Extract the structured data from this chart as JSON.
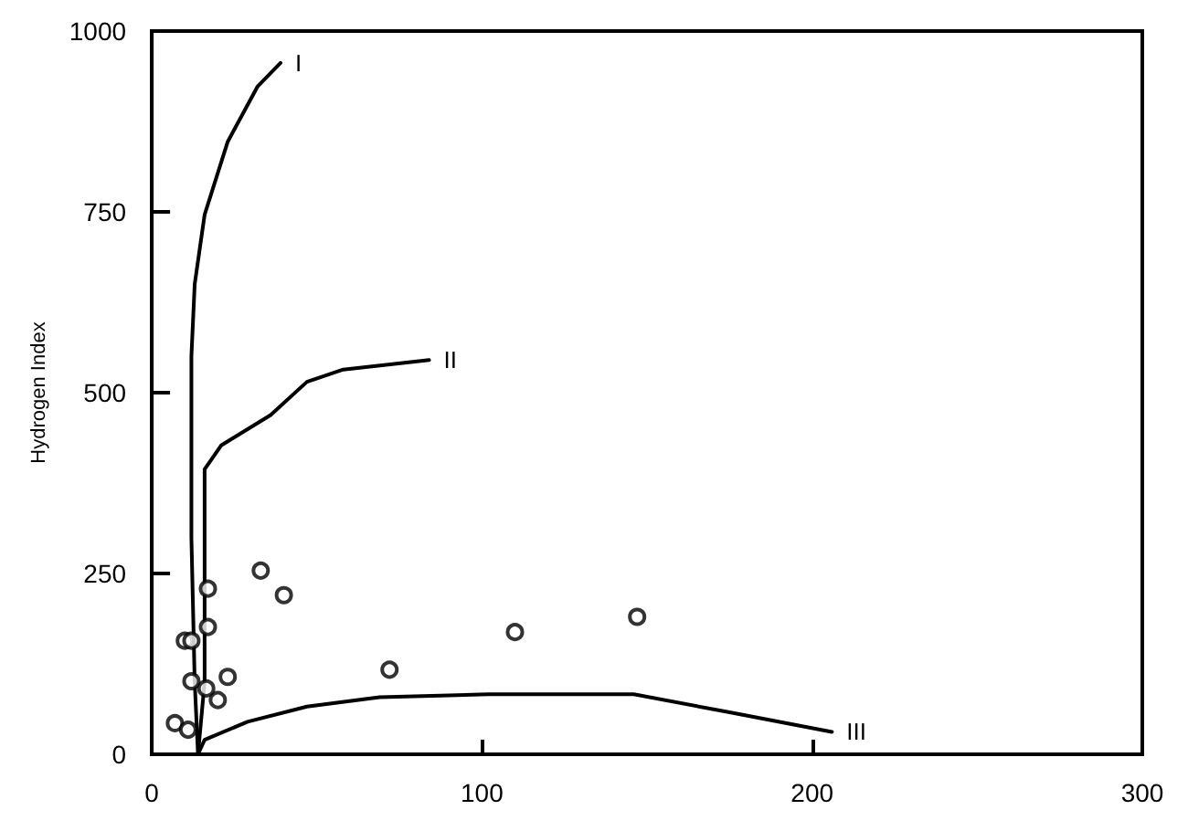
{
  "chart_data": {
    "type": "scatter",
    "ylabel": "Hydrogen Index",
    "xlim": [
      0,
      300
    ],
    "ylim": [
      0,
      1000
    ],
    "xticks": [
      0,
      100,
      200,
      300
    ],
    "yticks": [
      0,
      250,
      500,
      750,
      1000
    ],
    "legend": false,
    "series": [
      {
        "type": "line",
        "name": "I",
        "color": "#000000",
        "marker": "none",
        "x": [
          14,
          13,
          12,
          12,
          13,
          16,
          23,
          32,
          39
        ],
        "values": [
          0,
          100,
          300,
          550,
          650,
          746,
          847,
          923,
          956
        ]
      },
      {
        "type": "line",
        "name": "II",
        "color": "#000000",
        "marker": "none",
        "x": [
          14,
          16,
          16,
          21,
          36,
          47,
          58,
          84
        ],
        "values": [
          0,
          100,
          394,
          427,
          469,
          515,
          532,
          545
        ]
      },
      {
        "type": "line",
        "name": "III",
        "color": "#000000",
        "marker": "none",
        "x": [
          14,
          16,
          29,
          47,
          69,
          102,
          146,
          175,
          206
        ],
        "values": [
          0,
          20,
          45,
          66,
          79,
          83,
          83,
          58,
          31
        ]
      },
      {
        "color": "#000000",
        "marker": "circle",
        "x": [
          33,
          40,
          17,
          17,
          10,
          12,
          12,
          16.5,
          20,
          23,
          7,
          11,
          72,
          110,
          147
        ],
        "values": [
          254,
          220,
          229,
          176,
          157,
          157,
          101,
          91,
          75,
          107,
          43,
          34,
          117,
          169,
          190
        ]
      }
    ]
  }
}
